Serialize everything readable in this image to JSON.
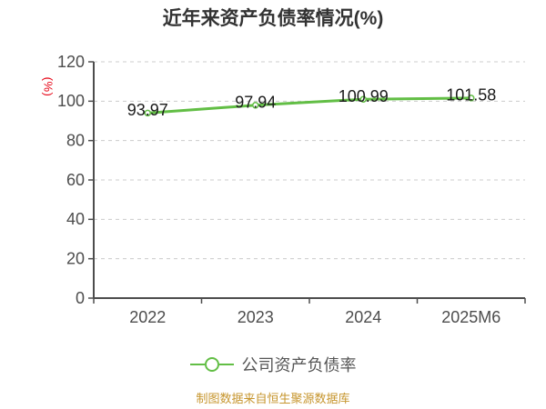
{
  "title": "近年来资产负债率情况(%)",
  "chart_data": {
    "type": "line",
    "categories": [
      "2022",
      "2023",
      "2024",
      "2025M6"
    ],
    "series": [
      {
        "name": "公司资产负债率",
        "values": [
          93.97,
          97.94,
          100.99,
          101.58
        ]
      }
    ],
    "title": "近年来资产负债率情况(%)",
    "xlabel": "",
    "ylabel": "(%)",
    "ylim": [
      0,
      120
    ],
    "ytick_interval": 20,
    "yticks": [
      0,
      20,
      40,
      60,
      80,
      100,
      120
    ],
    "grid": "horizontal-dashed",
    "legend_position": "bottom",
    "marker": "hollow-circle",
    "data_labels": [
      "93.97",
      "97.94",
      "100.99",
      "101.58"
    ]
  },
  "legend": {
    "label": "公司资产负债率"
  },
  "footer": {
    "text": "制图数据来自恒生聚源数据库"
  },
  "colors": {
    "line": "#62BE45",
    "title": "#333333",
    "axis": "#4d4d4d",
    "grid": "#cccccc",
    "data_label": "#1a1a1a",
    "ylabel_red": "#E60012",
    "footer": "#C6952D",
    "legend_text": "#555555"
  }
}
